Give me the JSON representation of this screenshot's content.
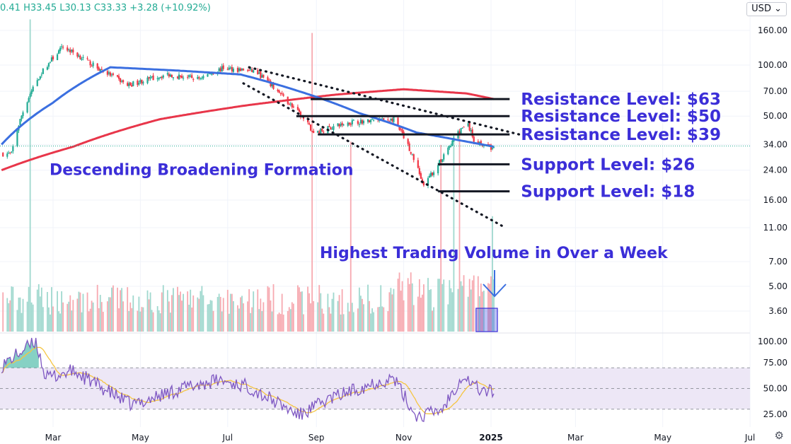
{
  "legend": {
    "open": "0.41",
    "high": "H33.45",
    "low": "L30.13",
    "close": "C33.33",
    "change": "+3.28 (+10.92%)"
  },
  "currency": "USD",
  "currency_chevron_icon": "chevron-down-icon",
  "settings_icon": "gear-icon",
  "colors": {
    "up": "#22ab94",
    "down": "#f23645",
    "ma_short": "#3b6fe0",
    "ma_long": "#e8364a",
    "annotation": "#3b2ed8",
    "rsi": "#7e57c2",
    "rsi_ma": "#f5c542",
    "rsi_band": "#ede7f6"
  },
  "chart_data": {
    "type": "candlestick",
    "price_scale": "log",
    "price_axis_ticks": [
      "160.00",
      "100.00",
      "70.00",
      "50.00",
      "34.00",
      "24.00",
      "16.00",
      "11.00",
      "7.00",
      "5.00",
      "3.60"
    ],
    "rsi_axis_ticks": [
      "100.00",
      "75.00",
      "50.00",
      "25.00"
    ],
    "x_tick_labels": [
      "Mar",
      "May",
      "Jul",
      "Sep",
      "Nov",
      "2025",
      "Mar",
      "May",
      "Jul"
    ],
    "last_price": 33.33,
    "price_anchors": [
      {
        "date": "2024-02-01",
        "price": 30
      },
      {
        "date": "2024-02-20",
        "price": 85
      },
      {
        "date": "2024-03-08",
        "price": 128
      },
      {
        "date": "2024-04-01",
        "price": 96
      },
      {
        "date": "2024-04-22",
        "price": 76
      },
      {
        "date": "2024-05-20",
        "price": 88
      },
      {
        "date": "2024-06-10",
        "price": 83
      },
      {
        "date": "2024-06-28",
        "price": 96
      },
      {
        "date": "2024-07-20",
        "price": 92
      },
      {
        "date": "2024-08-10",
        "price": 63
      },
      {
        "date": "2024-08-30",
        "price": 40
      },
      {
        "date": "2024-09-25",
        "price": 46
      },
      {
        "date": "2024-10-25",
        "price": 48
      },
      {
        "date": "2024-11-05",
        "price": 32
      },
      {
        "date": "2024-11-15",
        "price": 19
      },
      {
        "date": "2024-11-28",
        "price": 28
      },
      {
        "date": "2024-12-15",
        "price": 46
      },
      {
        "date": "2024-12-20",
        "price": 36
      },
      {
        "date": "2025-01-03",
        "price": 32
      }
    ],
    "moving_average_short": [
      {
        "date": "2024-01-25",
        "price": 34
      },
      {
        "date": "2024-03-01",
        "price": 60
      },
      {
        "date": "2024-04-10",
        "price": 97
      },
      {
        "date": "2024-05-25",
        "price": 93
      },
      {
        "date": "2024-07-10",
        "price": 88
      },
      {
        "date": "2024-08-20",
        "price": 70
      },
      {
        "date": "2024-10-01",
        "price": 52
      },
      {
        "date": "2024-11-10",
        "price": 40
      },
      {
        "date": "2024-12-10",
        "price": 36
      },
      {
        "date": "2025-01-03",
        "price": 33
      }
    ],
    "moving_average_long": [
      {
        "date": "2024-01-25",
        "price": 24
      },
      {
        "date": "2024-03-15",
        "price": 33
      },
      {
        "date": "2024-05-15",
        "price": 48
      },
      {
        "date": "2024-07-15",
        "price": 58
      },
      {
        "date": "2024-09-15",
        "price": 67
      },
      {
        "date": "2024-11-01",
        "price": 72
      },
      {
        "date": "2024-12-15",
        "price": 68
      },
      {
        "date": "2025-01-03",
        "price": 63
      }
    ],
    "volume_spikes": [
      {
        "date": "2024-02-14",
        "value": 9.2
      },
      {
        "date": "2024-08-29",
        "value": 8.8
      },
      {
        "date": "2024-09-25",
        "value": 5.6
      },
      {
        "date": "2024-11-27",
        "value": 5.5
      },
      {
        "date": "2024-12-06",
        "value": 5.8
      },
      {
        "date": "2024-12-10",
        "value": 5.9
      },
      {
        "date": "2025-01-02",
        "value": 3.4
      }
    ],
    "rsi_anchors": [
      {
        "date": "2024-01-25",
        "value": 72
      },
      {
        "date": "2024-02-18",
        "value": 96
      },
      {
        "date": "2024-02-25",
        "value": 60
      },
      {
        "date": "2024-03-15",
        "value": 67
      },
      {
        "date": "2024-04-25",
        "value": 34
      },
      {
        "date": "2024-06-01",
        "value": 51
      },
      {
        "date": "2024-06-25",
        "value": 58
      },
      {
        "date": "2024-07-15",
        "value": 52
      },
      {
        "date": "2024-08-20",
        "value": 24
      },
      {
        "date": "2024-09-10",
        "value": 40
      },
      {
        "date": "2024-10-10",
        "value": 55
      },
      {
        "date": "2024-10-25",
        "value": 60
      },
      {
        "date": "2024-11-10",
        "value": 22
      },
      {
        "date": "2024-11-28",
        "value": 30
      },
      {
        "date": "2024-12-12",
        "value": 63
      },
      {
        "date": "2024-12-25",
        "value": 48
      },
      {
        "date": "2025-01-03",
        "value": 47
      }
    ],
    "rsi_levels": [
      70,
      50,
      30
    ],
    "trendlines": [
      {
        "name": "upper",
        "from": {
          "date": "2024-07-16",
          "price": 97
        },
        "to": {
          "date": "2025-01-26",
          "price": 38
        }
      },
      {
        "name": "lower",
        "from": {
          "date": "2024-07-12",
          "price": 78
        },
        "to": {
          "date": "2025-01-11",
          "price": 11
        }
      }
    ],
    "levels": [
      {
        "label": "Resistance Level: $63",
        "price": 63,
        "from": "2024-08-28",
        "to": "2025-01-14"
      },
      {
        "label": "Resistance Level: $50",
        "price": 50,
        "from": "2024-08-18",
        "to": "2025-01-14"
      },
      {
        "label": "Resistance Level: $39",
        "price": 39,
        "from": "2024-09-02",
        "to": "2025-01-14"
      },
      {
        "label": "Support Level: $26",
        "price": 26,
        "from": "2024-11-25",
        "to": "2025-01-14"
      },
      {
        "label": "Support Level: $18",
        "price": 18,
        "from": "2024-11-25",
        "to": "2025-01-14"
      }
    ],
    "pattern_label": "Descending Broadening Formation",
    "volume_annotation": "Highest Trading Volume in Over a Week",
    "volume_highlight": {
      "from": "2024-12-24",
      "to": "2025-01-03"
    }
  }
}
